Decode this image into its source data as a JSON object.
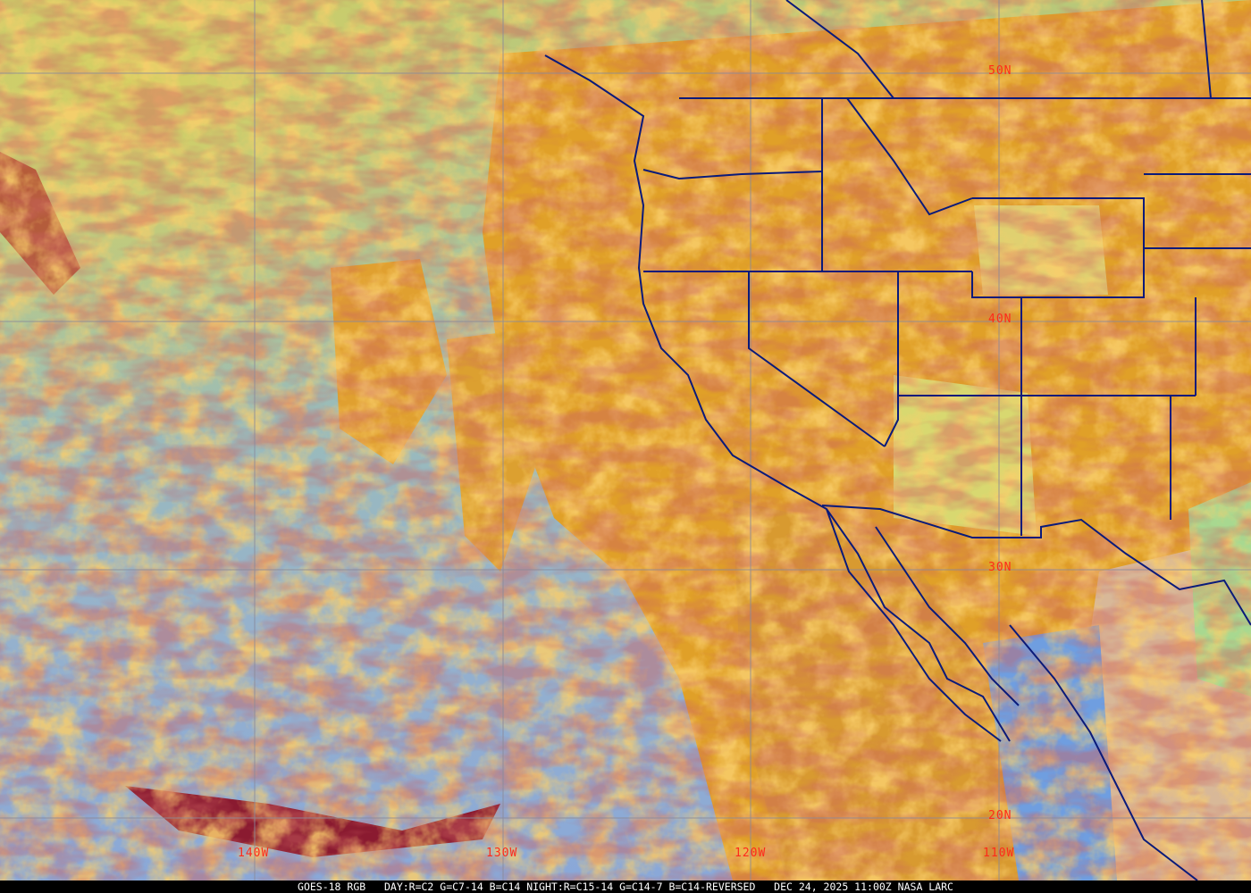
{
  "map": {
    "latitude_labels": [
      "50N",
      "40N",
      "30N",
      "20N"
    ],
    "longitude_labels": [
      "140W",
      "130W",
      "120W",
      "110W"
    ],
    "colors": {
      "grid": "#8a8a9a",
      "borders": "#0a1a7a",
      "labels": "#ff2a1a",
      "ocean_clear": "#8fb0c8",
      "cloud_warm": "#e8a020",
      "cloud_cold": "#8a1a30",
      "land_low_cloud": "#d8d860"
    }
  },
  "caption": {
    "satellite": "GOES-18 RGB",
    "recipe": "DAY:R=C2 G=C7-14 B=C14 NIGHT:R=C15-14 G=C14-7 B=C14-REVERSED",
    "datetime": "DEC 24, 2025 11:00Z",
    "source": "NASA LARC"
  }
}
